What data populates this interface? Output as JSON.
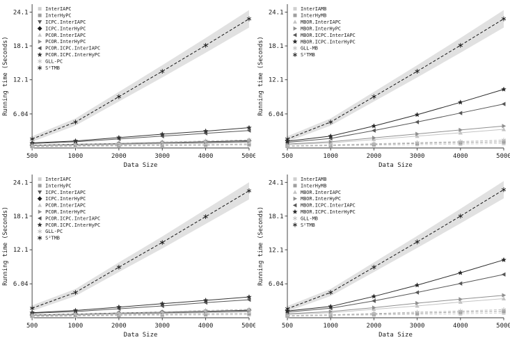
{
  "page": {
    "background": "#ffffff",
    "band_color": "#dcdcdc",
    "axis_color": "#333333"
  },
  "chart_data": [
    {
      "type": "line",
      "title": "",
      "xlabel": "Data Size",
      "ylabel": "Running time (Seconds)",
      "x": [
        500,
        1000,
        2000,
        3000,
        4000,
        5000
      ],
      "xtick_labels": [
        "500",
        "1000",
        "2000",
        "3000",
        "4000",
        "5000"
      ],
      "ytick_values": [
        6.04,
        12.1,
        18.1,
        24.1
      ],
      "ytick_labels": [
        "6.04",
        "12.1",
        "18.1",
        "24.1"
      ],
      "ylim": [
        0,
        25.5
      ],
      "grid": false,
      "legend_position": "top-left",
      "series": [
        {
          "name": "InterIAPC",
          "marker": "square",
          "line": "dashed",
          "color": "#cfcfcf",
          "values": [
            0.25,
            0.3,
            0.35,
            0.4,
            0.45,
            0.5
          ]
        },
        {
          "name": "InterHyPC",
          "marker": "square",
          "line": "dashed",
          "color": "#9e9e9e",
          "values": [
            0.3,
            0.4,
            0.45,
            0.55,
            0.6,
            0.7
          ]
        },
        {
          "name": "ICPC.InterIAPC",
          "marker": "triangle-down",
          "line": "solid",
          "color": "#5a5a5a",
          "values": [
            0.45,
            0.55,
            0.7,
            0.8,
            0.95,
            1.1
          ]
        },
        {
          "name": "ICPC.InterHyPC",
          "marker": "diamond",
          "line": "solid",
          "color": "#1c1c1c",
          "values": [
            0.5,
            0.65,
            0.8,
            0.95,
            1.1,
            1.3
          ]
        },
        {
          "name": "PCOR.InterIAPC",
          "marker": "triangle-up",
          "line": "solid",
          "color": "#c4c4c4",
          "values": [
            0.4,
            0.5,
            0.6,
            0.75,
            0.85,
            1.0
          ]
        },
        {
          "name": "PCOR.InterHyPC",
          "marker": "triangle-right",
          "line": "solid",
          "color": "#8f8f8f",
          "values": [
            0.45,
            0.6,
            0.75,
            0.9,
            1.05,
            1.2
          ]
        },
        {
          "name": "PCOR.ICPC.InterIAPC",
          "marker": "triangle-left",
          "line": "solid",
          "color": "#565656",
          "values": [
            0.8,
            1.1,
            1.6,
            2.1,
            2.6,
            3.1
          ]
        },
        {
          "name": "PCOR.ICPC.InterHyPC",
          "marker": "star",
          "line": "solid",
          "color": "#333333",
          "values": [
            0.9,
            1.25,
            1.85,
            2.45,
            3.0,
            3.6
          ]
        },
        {
          "name": "GLL-PC",
          "marker": "asterisk",
          "line": "dashed",
          "color": "#bdbdbd",
          "values": [
            0.5,
            0.65,
            0.85,
            1.05,
            1.25,
            1.45
          ]
        },
        {
          "name": "S²TMB",
          "marker": "asterisk",
          "line": "dashed",
          "color": "#141414",
          "band_abs": 0.4,
          "band_rel": 0.05,
          "values": [
            1.6,
            4.6,
            9.1,
            13.6,
            18.2,
            22.9
          ]
        }
      ]
    },
    {
      "type": "line",
      "title": "",
      "xlabel": "Data Size",
      "ylabel": "Running time (Seconds)",
      "x": [
        500,
        1000,
        2000,
        3000,
        4000,
        5000
      ],
      "xtick_labels": [
        "500",
        "1000",
        "2000",
        "3000",
        "4000",
        "5000"
      ],
      "ytick_values": [
        6.04,
        12.1,
        18.1,
        24.1
      ],
      "ytick_labels": [
        "6.04",
        "12.1",
        "18.1",
        "24.1"
      ],
      "ylim": [
        0,
        25.5
      ],
      "grid": false,
      "legend_position": "top-left",
      "series": [
        {
          "name": "InterIAMB",
          "marker": "square",
          "line": "dashed",
          "color": "#cfcfcf",
          "values": [
            0.3,
            0.4,
            0.5,
            0.6,
            0.7,
            0.8
          ]
        },
        {
          "name": "InterHyMB",
          "marker": "square",
          "line": "dashed",
          "color": "#9e9e9e",
          "values": [
            0.35,
            0.5,
            0.65,
            0.8,
            0.95,
            1.1
          ]
        },
        {
          "name": "MBOR.InterIAPC",
          "marker": "triangle-up",
          "line": "solid",
          "color": "#c4c4c4",
          "values": [
            0.6,
            0.9,
            1.5,
            2.1,
            2.7,
            3.3
          ]
        },
        {
          "name": "MBOR.InterHyPC",
          "marker": "triangle-right",
          "line": "solid",
          "color": "#8f8f8f",
          "values": [
            0.7,
            1.1,
            1.8,
            2.5,
            3.2,
            3.9
          ]
        },
        {
          "name": "MBOR.ICPC.InterIAPC",
          "marker": "triangle-left",
          "line": "solid",
          "color": "#565656",
          "values": [
            1.0,
            1.7,
            3.1,
            4.6,
            6.2,
            7.8
          ]
        },
        {
          "name": "MBOR.ICPC.InterHyPC",
          "marker": "star",
          "line": "solid",
          "color": "#2a2a2a",
          "values": [
            1.2,
            2.1,
            3.9,
            5.9,
            8.1,
            10.4
          ]
        },
        {
          "name": "GLL-MB",
          "marker": "asterisk",
          "line": "dashed",
          "color": "#bdbdbd",
          "values": [
            0.4,
            0.55,
            0.75,
            0.95,
            1.15,
            1.4
          ]
        },
        {
          "name": "S²TMB",
          "marker": "asterisk",
          "line": "dashed",
          "color": "#141414",
          "band_abs": 0.4,
          "band_rel": 0.05,
          "values": [
            1.6,
            4.6,
            9.1,
            13.6,
            18.2,
            22.9
          ]
        }
      ]
    },
    {
      "type": "line",
      "title": "",
      "xlabel": "Data Size",
      "ylabel": "Running time (Seconds)",
      "x": [
        500,
        1000,
        2000,
        3000,
        4000,
        5000
      ],
      "xtick_labels": [
        "500",
        "1000",
        "2000",
        "3000",
        "4000",
        "5000"
      ],
      "ytick_values": [
        6.04,
        12.1,
        18.1,
        24.1
      ],
      "ytick_labels": [
        "6.04",
        "12.1",
        "18.1",
        "24.1"
      ],
      "ylim": [
        0,
        25.5
      ],
      "grid": false,
      "legend_position": "top-left",
      "series": [
        {
          "name": "InterIAPC",
          "marker": "square",
          "line": "dashed",
          "color": "#cfcfcf",
          "values": [
            0.25,
            0.3,
            0.4,
            0.45,
            0.5,
            0.55
          ]
        },
        {
          "name": "InterHyPC",
          "marker": "square",
          "line": "dashed",
          "color": "#9e9e9e",
          "values": [
            0.3,
            0.4,
            0.5,
            0.6,
            0.65,
            0.75
          ]
        },
        {
          "name": "ICPC.InterIAPC",
          "marker": "triangle-down",
          "line": "solid",
          "color": "#5a5a5a",
          "values": [
            0.45,
            0.55,
            0.7,
            0.85,
            1.0,
            1.15
          ]
        },
        {
          "name": "ICPC.InterHyPC",
          "marker": "diamond",
          "line": "solid",
          "color": "#1c1c1c",
          "values": [
            0.5,
            0.65,
            0.85,
            1.0,
            1.15,
            1.35
          ]
        },
        {
          "name": "PCOR.InterIAPC",
          "marker": "triangle-up",
          "line": "solid",
          "color": "#c4c4c4",
          "values": [
            0.4,
            0.5,
            0.65,
            0.75,
            0.9,
            1.05
          ]
        },
        {
          "name": "PCOR.InterHyPC",
          "marker": "triangle-right",
          "line": "solid",
          "color": "#8f8f8f",
          "values": [
            0.45,
            0.6,
            0.8,
            0.95,
            1.1,
            1.25
          ]
        },
        {
          "name": "PCOR.ICPC.InterIAPC",
          "marker": "triangle-left",
          "line": "solid",
          "color": "#565656",
          "values": [
            0.8,
            1.1,
            1.6,
            2.1,
            2.7,
            3.2
          ]
        },
        {
          "name": "PCOR.ICPC.InterHyPC",
          "marker": "star",
          "line": "solid",
          "color": "#333333",
          "values": [
            0.9,
            1.3,
            1.9,
            2.5,
            3.1,
            3.7
          ]
        },
        {
          "name": "GLL-PC",
          "marker": "asterisk",
          "line": "dashed",
          "color": "#bdbdbd",
          "values": [
            0.5,
            0.65,
            0.85,
            1.05,
            1.3,
            1.5
          ]
        },
        {
          "name": "S²TMB",
          "marker": "asterisk",
          "line": "dashed",
          "color": "#141414",
          "band_abs": 0.4,
          "band_rel": 0.05,
          "values": [
            1.7,
            4.5,
            9.0,
            13.4,
            18.0,
            22.6
          ]
        }
      ]
    },
    {
      "type": "line",
      "title": "",
      "xlabel": "Data Size",
      "ylabel": "Running time (Seconds)",
      "x": [
        500,
        1000,
        2000,
        3000,
        4000,
        5000
      ],
      "xtick_labels": [
        "500",
        "1000",
        "2000",
        "3000",
        "4000",
        "5000"
      ],
      "ytick_values": [
        6.04,
        12.1,
        18.1,
        24.1
      ],
      "ytick_labels": [
        "6.04",
        "12.1",
        "18.1",
        "24.1"
      ],
      "ylim": [
        0,
        25.5
      ],
      "grid": false,
      "legend_position": "top-left",
      "series": [
        {
          "name": "InterIAMB",
          "marker": "square",
          "line": "dashed",
          "color": "#cfcfcf",
          "values": [
            0.3,
            0.4,
            0.5,
            0.6,
            0.7,
            0.85
          ]
        },
        {
          "name": "InterHyMB",
          "marker": "square",
          "line": "dashed",
          "color": "#9e9e9e",
          "values": [
            0.35,
            0.5,
            0.65,
            0.8,
            1.0,
            1.15
          ]
        },
        {
          "name": "MBOR.InterIAPC",
          "marker": "triangle-up",
          "line": "solid",
          "color": "#c4c4c4",
          "values": [
            0.6,
            0.9,
            1.5,
            2.1,
            2.8,
            3.4
          ]
        },
        {
          "name": "MBOR.InterHyPC",
          "marker": "triangle-right",
          "line": "solid",
          "color": "#8f8f8f",
          "values": [
            0.7,
            1.1,
            1.8,
            2.6,
            3.3,
            4.0
          ]
        },
        {
          "name": "MBOR.ICPC.InterIAPC",
          "marker": "triangle-left",
          "line": "solid",
          "color": "#565656",
          "values": [
            1.0,
            1.7,
            3.0,
            4.5,
            6.1,
            7.7
          ]
        },
        {
          "name": "MBOR.ICPC.InterHyPC",
          "marker": "star",
          "line": "solid",
          "color": "#2a2a2a",
          "values": [
            1.2,
            2.0,
            3.8,
            5.8,
            8.0,
            10.3
          ]
        },
        {
          "name": "GLL-MB",
          "marker": "asterisk",
          "line": "dashed",
          "color": "#bdbdbd",
          "values": [
            0.4,
            0.55,
            0.75,
            1.0,
            1.2,
            1.45
          ]
        },
        {
          "name": "S²TMB",
          "marker": "asterisk",
          "line": "dashed",
          "color": "#141414",
          "band_abs": 0.4,
          "band_rel": 0.05,
          "values": [
            1.6,
            4.5,
            9.0,
            13.5,
            18.1,
            22.8
          ]
        }
      ]
    }
  ]
}
